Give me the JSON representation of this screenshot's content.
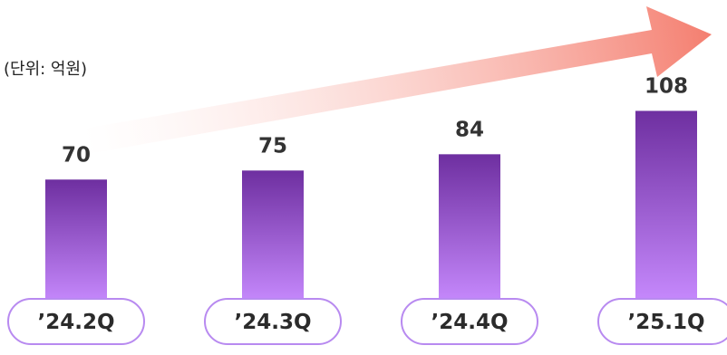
{
  "unit_label": "(단위: 억원)",
  "colors": {
    "bar_top": "#6e2fa0",
    "bar_bottom": "#c88bff",
    "pill_border": "#b88af0",
    "arrow_start": "#ffffff",
    "arrow_end": "#f47d6e"
  },
  "chart_data": {
    "type": "bar",
    "categories": [
      "’24.2Q",
      "’24.3Q",
      "’24.4Q",
      "’25.1Q"
    ],
    "values": [
      70,
      75,
      84,
      108
    ],
    "title": "",
    "xlabel": "",
    "ylabel": "",
    "unit": "(단위: 억원)",
    "trend_arrow": true,
    "grid": false,
    "legend": "none"
  }
}
